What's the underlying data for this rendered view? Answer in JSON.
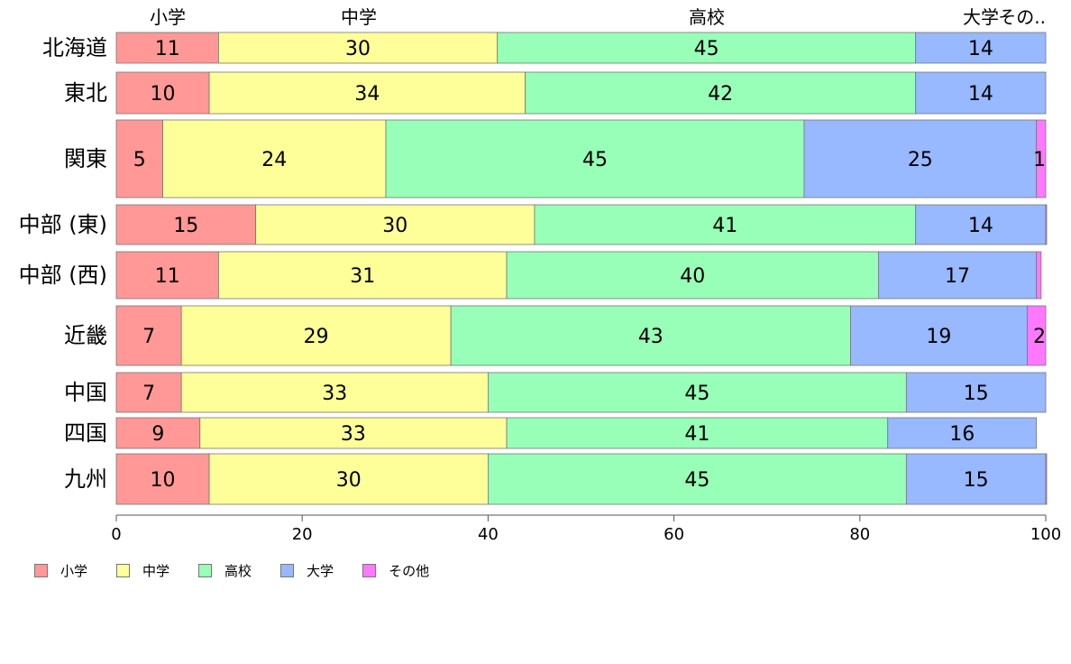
{
  "chart_data": {
    "type": "bar",
    "orientation": "horizontal",
    "stacked": true,
    "categories": [
      "北海道",
      "東北",
      "関東",
      "中部 (東)",
      "中部 (西)",
      "近畿",
      "中国",
      "四国",
      "九州"
    ],
    "series": [
      {
        "name": "小学",
        "color": "#ff9896",
        "values": [
          11,
          10,
          5,
          15,
          11,
          7,
          7,
          9,
          10
        ]
      },
      {
        "name": "中学",
        "color": "#ffff99",
        "values": [
          30,
          34,
          24,
          30,
          31,
          29,
          33,
          33,
          30
        ]
      },
      {
        "name": "高校",
        "color": "#98ffb8",
        "values": [
          45,
          42,
          45,
          41,
          40,
          43,
          45,
          41,
          45
        ]
      },
      {
        "name": "大学",
        "color": "#98b8ff",
        "values": [
          14,
          14,
          25,
          14,
          17,
          19,
          15,
          16,
          15
        ]
      },
      {
        "name": "その他",
        "color": "#ff78ff",
        "values": [
          0,
          0,
          1,
          0.3,
          0.5,
          2,
          0,
          0,
          0.3
        ]
      }
    ],
    "series_top_labels": [
      "小学",
      "中学",
      "高校",
      "大学",
      "その.."
    ],
    "data_labels": [
      [
        "11",
        "30",
        "45",
        "14",
        ""
      ],
      [
        "10",
        "34",
        "42",
        "14",
        ""
      ],
      [
        "5",
        "24",
        "45",
        "25",
        "1"
      ],
      [
        "15",
        "30",
        "41",
        "14",
        ""
      ],
      [
        "11",
        "31",
        "40",
        "17",
        ""
      ],
      [
        "7",
        "29",
        "43",
        "19",
        "2"
      ],
      [
        "7",
        "33",
        "45",
        "15",
        ""
      ],
      [
        "9",
        "33",
        "41",
        "16",
        ""
      ],
      [
        "10",
        "30",
        "45",
        "15",
        ""
      ]
    ],
    "xlim": [
      0,
      100
    ],
    "xticks": [
      "0",
      "20",
      "40",
      "60",
      "80",
      "100"
    ],
    "legend_position": "bottom-left",
    "grid": false
  }
}
